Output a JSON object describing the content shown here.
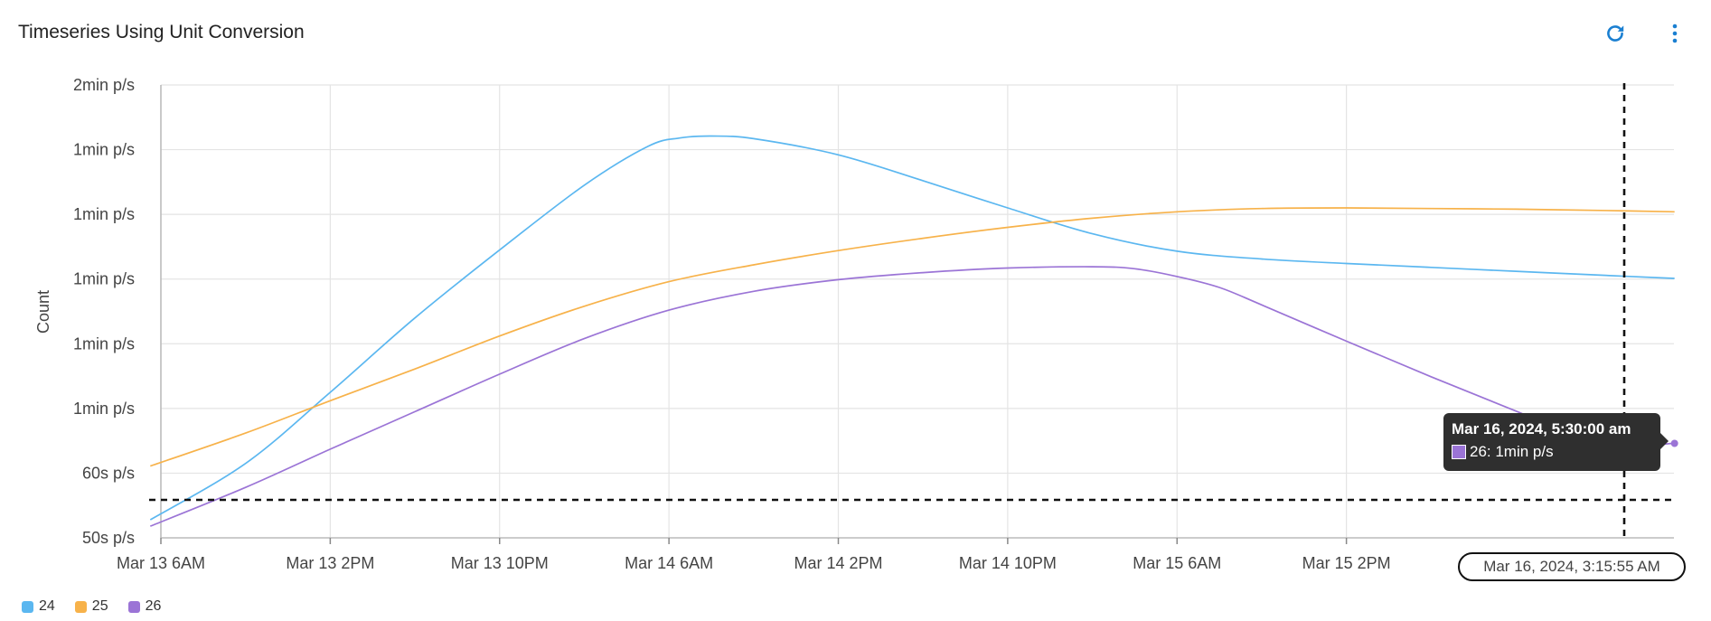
{
  "panel": {
    "title": "Timeseries Using Unit Conversion",
    "refresh_icon": "refresh-icon",
    "menu_icon": "kebab-menu-icon"
  },
  "colors": {
    "accent": "#1a7fd1",
    "series_24": "#5bb7f0",
    "series_25": "#f7b24a",
    "series_26": "#9b74d6",
    "grid": "#e4e4e4",
    "axis": "#bdbdbd"
  },
  "chart_data": {
    "type": "line",
    "xlabel": "",
    "ylabel": "Count",
    "x_tick_labels": [
      "Mar 13 6AM",
      "Mar 13 2PM",
      "Mar 13 10PM",
      "Mar 14 6AM",
      "Mar 14 2PM",
      "Mar 14 10PM",
      "Mar 15 6AM",
      "Mar 15 2PM"
    ],
    "x_ticks_hours": [
      0,
      8,
      16,
      24,
      32,
      40,
      48,
      56
    ],
    "x_range_hours": [
      0,
      71.5
    ],
    "y_tick_labels": [
      "50s p/s",
      "60s p/s",
      "1min p/s",
      "1min p/s",
      "1min p/s",
      "1min p/s",
      "1min p/s",
      "2min p/s"
    ],
    "y_ticks_seconds": [
      50,
      60,
      70,
      80,
      90,
      100,
      110,
      120
    ],
    "ylim_seconds": [
      50,
      120
    ],
    "grid": true,
    "legend_position": "bottom-left",
    "series": [
      {
        "name": "24",
        "color": "#5bb7f0",
        "x_hours": [
          -0.5,
          4,
          8,
          12,
          16,
          20,
          23,
          24.5,
          26,
          28,
          32,
          36,
          40,
          44,
          48,
          52,
          56,
          60,
          64,
          68,
          71.5
        ],
        "y_seconds": [
          52.8,
          61.5,
          72.5,
          84,
          94.5,
          104.5,
          110.5,
          111.8,
          112.1,
          111.7,
          109.2,
          105.2,
          101,
          97,
          94.3,
          93.1,
          92.4,
          91.8,
          91.2,
          90.6,
          90.1
        ]
      },
      {
        "name": "25",
        "color": "#f7b24a",
        "x_hours": [
          -0.5,
          4,
          8,
          12,
          16,
          20,
          24,
          28,
          32,
          36,
          40,
          44,
          48,
          52,
          56,
          60,
          64,
          68,
          71.5
        ],
        "y_seconds": [
          61.1,
          66.2,
          71.2,
          76.1,
          81.2,
          85.8,
          89.6,
          92.2,
          94.4,
          96.3,
          98,
          99.4,
          100.4,
          100.9,
          101,
          100.9,
          100.8,
          100.6,
          100.4
        ]
      },
      {
        "name": "26",
        "color": "#9b74d6",
        "x_hours": [
          -0.5,
          4,
          8,
          12,
          16,
          20,
          24,
          28,
          32,
          36,
          40,
          44,
          46,
          48,
          50,
          52,
          56,
          60,
          64,
          68,
          71.5
        ],
        "y_seconds": [
          51.8,
          57.8,
          63.7,
          69.5,
          75.3,
          80.8,
          85.2,
          88.1,
          89.9,
          91,
          91.7,
          91.9,
          91.6,
          90.4,
          88.7,
          86,
          80.4,
          74.9,
          69.6,
          64.5,
          64.6
        ]
      }
    ],
    "cursor_label": "Mar 16, 2024, 3:15:55 AM"
  },
  "tooltip": {
    "title": "Mar 16, 2024, 5:30:00 am",
    "series_name": "26",
    "value_text": "26: 1min p/s",
    "color": "#9b74d6"
  },
  "legend": [
    {
      "name": "24",
      "color": "#5bb7f0"
    },
    {
      "name": "25",
      "color": "#f7b24a"
    },
    {
      "name": "26",
      "color": "#9b74d6"
    }
  ]
}
